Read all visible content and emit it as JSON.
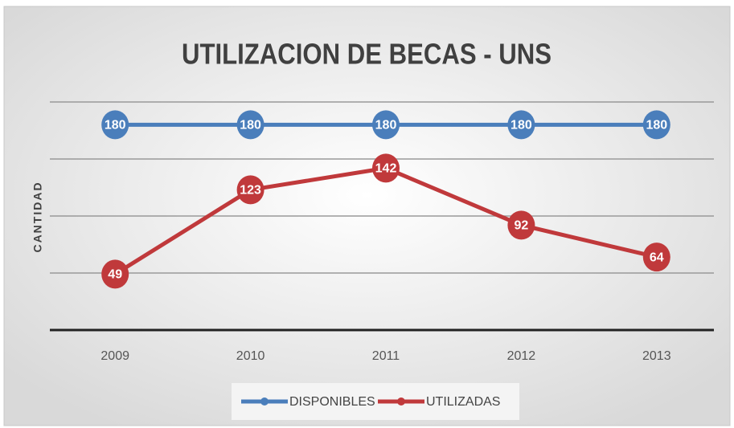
{
  "chart_data": {
    "type": "line",
    "title": "UTILIZACION DE BECAS - UNS",
    "y_label": "CANTIDAD",
    "categories": [
      "2009",
      "2010",
      "2011",
      "2012",
      "2013"
    ],
    "series": [
      {
        "name": "DISPONIBLES",
        "color": "#4a7ebb",
        "values": [
          180,
          180,
          180,
          180,
          180
        ]
      },
      {
        "name": "UTILIZADAS",
        "color": "#c0393b",
        "values": [
          49,
          123,
          142,
          92,
          64
        ]
      }
    ],
    "ylim": [
      0,
      200
    ],
    "yticks": [
      0,
      50,
      100,
      150,
      200
    ],
    "grid": true,
    "legend": "bottom"
  }
}
